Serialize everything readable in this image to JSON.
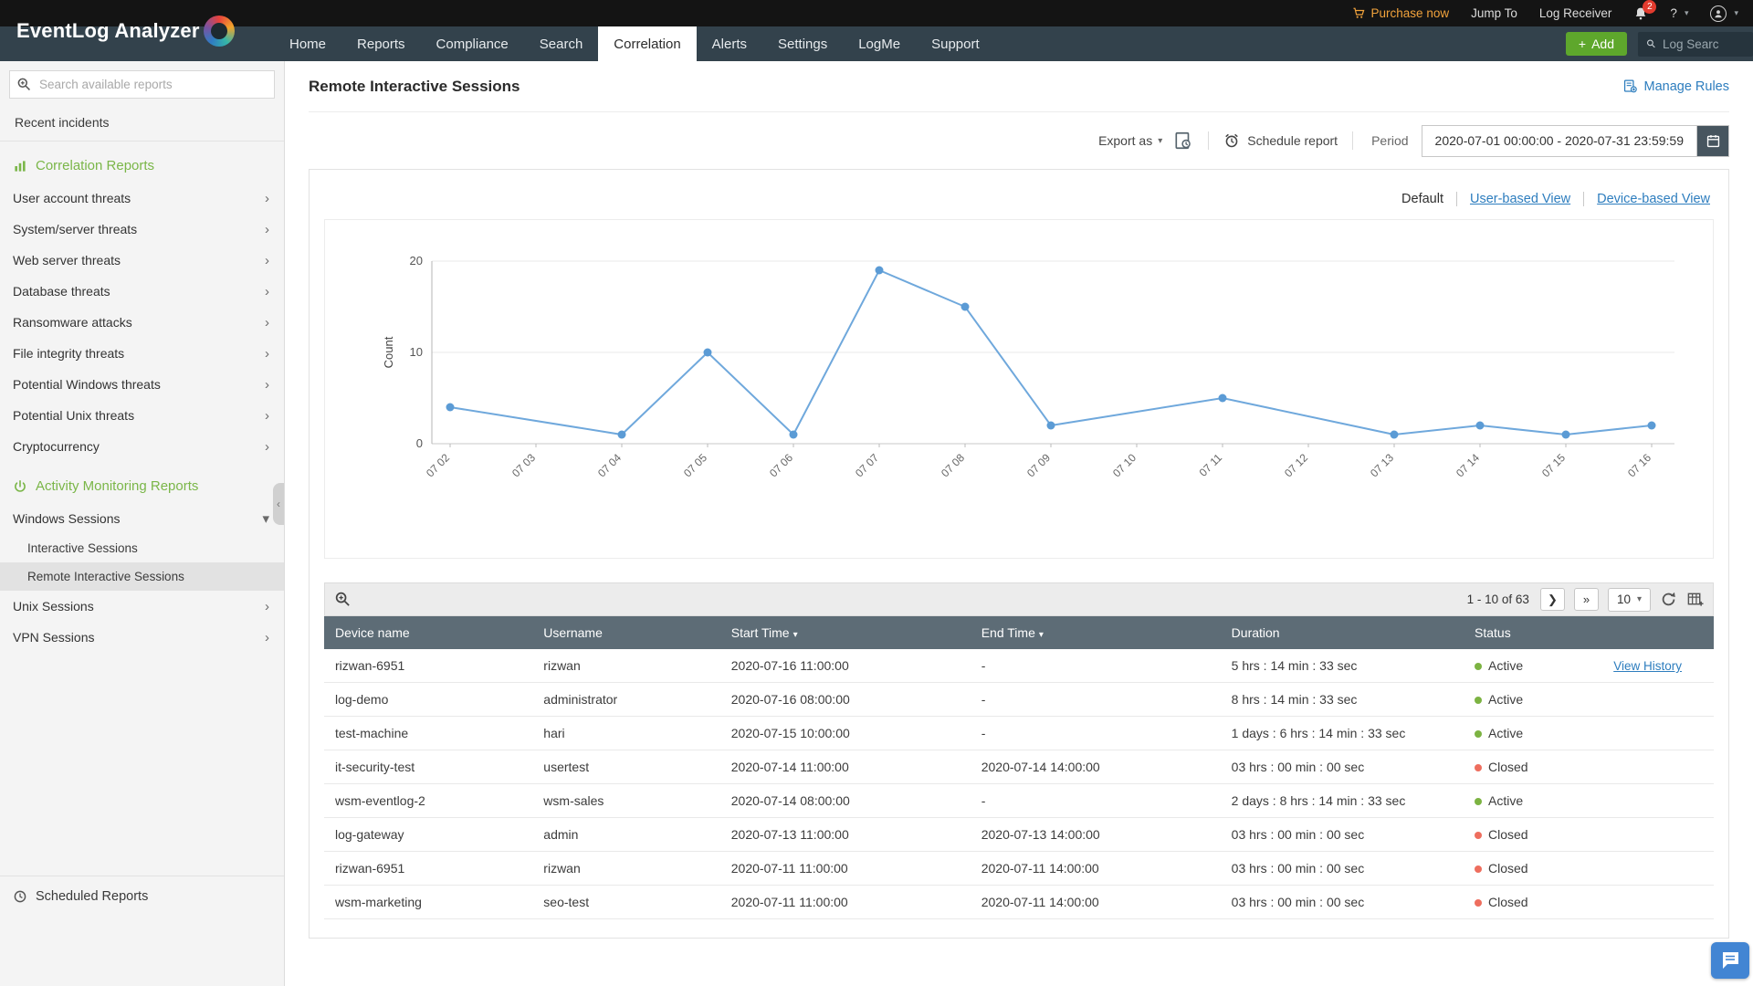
{
  "topbar": {
    "purchase": "Purchase now",
    "jump_to": "Jump To",
    "log_receiver": "Log Receiver",
    "badge": "2",
    "help": "?"
  },
  "navbar": {
    "brand": "EventLog Analyzer",
    "items": [
      "Home",
      "Reports",
      "Compliance",
      "Search",
      "Correlation",
      "Alerts",
      "Settings",
      "LogMe",
      "Support"
    ],
    "active": "Correlation",
    "add_label": "Add",
    "search_placeholder": "Log Searc"
  },
  "sidebar": {
    "search_placeholder": "Search available reports",
    "recent_incidents": "Recent incidents",
    "sections": [
      {
        "icon": "bar-chart",
        "title": "Correlation Reports",
        "items": [
          {
            "label": "User account threats",
            "chevron": "right"
          },
          {
            "label": "System/server threats",
            "chevron": "right"
          },
          {
            "label": "Web server threats",
            "chevron": "right"
          },
          {
            "label": "Database threats",
            "chevron": "right"
          },
          {
            "label": "Ransomware attacks",
            "chevron": "right"
          },
          {
            "label": "File integrity threats",
            "chevron": "right"
          },
          {
            "label": "Potential Windows threats",
            "chevron": "right"
          },
          {
            "label": "Potential Unix threats",
            "chevron": "right"
          },
          {
            "label": "Cryptocurrency",
            "chevron": "right"
          }
        ]
      },
      {
        "icon": "power",
        "title": "Activity Monitoring Reports",
        "items": [
          {
            "label": "Windows Sessions",
            "chevron": "down",
            "children": [
              {
                "label": "Interactive Sessions"
              },
              {
                "label": "Remote Interactive Sessions",
                "selected": true
              }
            ]
          },
          {
            "label": "Unix Sessions",
            "chevron": "right"
          },
          {
            "label": "VPN Sessions",
            "chevron": "right"
          }
        ]
      }
    ],
    "scheduled_reports": "Scheduled Reports"
  },
  "main": {
    "title": "Remote Interactive Sessions",
    "manage_rules": "Manage Rules",
    "export_as": "Export as",
    "schedule_report": "Schedule report",
    "period_label": "Period",
    "period_value": "2020-07-01 00:00:00 - 2020-07-31 23:59:59",
    "views": {
      "default": "Default",
      "user": "User-based View",
      "device": "Device-based View"
    }
  },
  "chart_data": {
    "type": "line",
    "title": "",
    "categories": [
      "07 02",
      "07 03",
      "07 04",
      "07 05",
      "07 06",
      "07 07",
      "07 08",
      "07 09",
      "07 10",
      "07 11",
      "07 12",
      "07 13",
      "07 14",
      "07 15",
      "07 16"
    ],
    "values": [
      4,
      null,
      1,
      10,
      1,
      19,
      15,
      2,
      null,
      5,
      null,
      1,
      2,
      1,
      2
    ],
    "xlabel": "",
    "ylabel": "Count",
    "ylim": [
      0,
      20
    ],
    "yticks": [
      0,
      10,
      20
    ],
    "grid": true,
    "legend": "none",
    "line_color": "#6fa8dc",
    "point_color": "#5b9bd5"
  },
  "table": {
    "pagination": {
      "range": "1 - 10 of 63",
      "page_size": "10"
    },
    "columns": [
      {
        "label": "Device name",
        "key": "device"
      },
      {
        "label": "Username",
        "key": "username"
      },
      {
        "label": "Start Time",
        "key": "start",
        "sortable": true
      },
      {
        "label": "End Time",
        "key": "end",
        "sortable": true
      },
      {
        "label": "Duration",
        "key": "duration"
      },
      {
        "label": "Status",
        "key": "status"
      },
      {
        "label": "",
        "key": "action"
      }
    ],
    "status_colors": {
      "Active": "#7cb342",
      "Closed": "#ee6e5e"
    },
    "rows": [
      {
        "device": "rizwan-6951",
        "username": "rizwan",
        "start": "2020-07-16 11:00:00",
        "end": "-",
        "duration": "5 hrs : 14 min : 33 sec",
        "status": "Active",
        "action": "View History"
      },
      {
        "device": "log-demo",
        "username": "administrator",
        "start": "2020-07-16 08:00:00",
        "end": "-",
        "duration": "8 hrs : 14 min : 33 sec",
        "status": "Active"
      },
      {
        "device": "test-machine",
        "username": "hari",
        "start": "2020-07-15 10:00:00",
        "end": "-",
        "duration": "1 days : 6 hrs : 14 min : 33 sec",
        "status": "Active"
      },
      {
        "device": "it-security-test",
        "username": "usertest",
        "start": "2020-07-14 11:00:00",
        "end": "2020-07-14 14:00:00",
        "duration": "03 hrs : 00 min : 00 sec",
        "status": "Closed"
      },
      {
        "device": "wsm-eventlog-2",
        "username": "wsm-sales",
        "start": "2020-07-14 08:00:00",
        "end": "-",
        "duration": "2 days : 8 hrs : 14 min : 33 sec",
        "status": "Active"
      },
      {
        "device": "log-gateway",
        "username": "admin",
        "start": "2020-07-13 11:00:00",
        "end": "2020-07-13 14:00:00",
        "duration": "03 hrs : 00 min : 00 sec",
        "status": "Closed"
      },
      {
        "device": "rizwan-6951",
        "username": "rizwan",
        "start": "2020-07-11 11:00:00",
        "end": "2020-07-11 14:00:00",
        "duration": "03 hrs : 00 min : 00 sec",
        "status": "Closed"
      },
      {
        "device": "wsm-marketing",
        "username": "seo-test",
        "start": "2020-07-11 11:00:00",
        "end": "2020-07-11 14:00:00",
        "duration": "03 hrs : 00 min : 00 sec",
        "status": "Closed"
      }
    ]
  }
}
